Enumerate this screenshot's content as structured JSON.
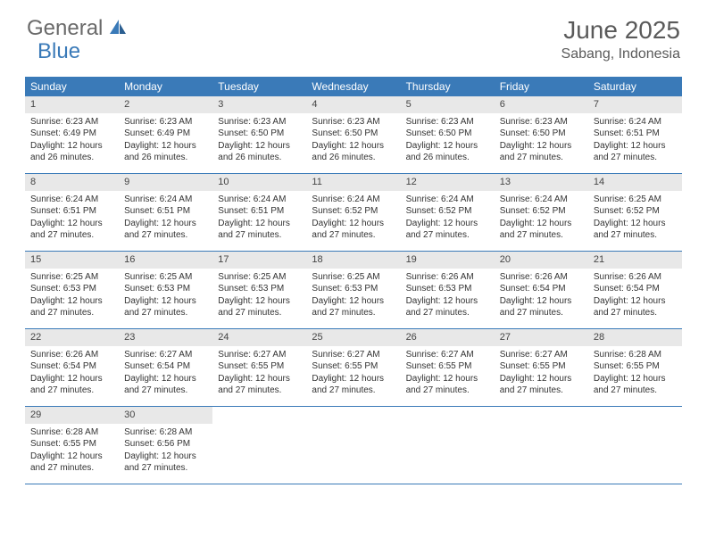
{
  "logo": {
    "main": "General",
    "sub": "Blue"
  },
  "title": "June 2025",
  "location": "Sabang, Indonesia",
  "colors": {
    "header_bg": "#3a7ab8",
    "header_text": "#ffffff",
    "daynum_bg": "#e8e8e8",
    "border": "#3a7ab8",
    "logo_gray": "#6a6a6a",
    "logo_blue": "#3a7ab8"
  },
  "day_headers": [
    "Sunday",
    "Monday",
    "Tuesday",
    "Wednesday",
    "Thursday",
    "Friday",
    "Saturday"
  ],
  "weeks": [
    [
      {
        "n": "1",
        "sr": "Sunrise: 6:23 AM",
        "ss": "Sunset: 6:49 PM",
        "d1": "Daylight: 12 hours",
        "d2": "and 26 minutes."
      },
      {
        "n": "2",
        "sr": "Sunrise: 6:23 AM",
        "ss": "Sunset: 6:49 PM",
        "d1": "Daylight: 12 hours",
        "d2": "and 26 minutes."
      },
      {
        "n": "3",
        "sr": "Sunrise: 6:23 AM",
        "ss": "Sunset: 6:50 PM",
        "d1": "Daylight: 12 hours",
        "d2": "and 26 minutes."
      },
      {
        "n": "4",
        "sr": "Sunrise: 6:23 AM",
        "ss": "Sunset: 6:50 PM",
        "d1": "Daylight: 12 hours",
        "d2": "and 26 minutes."
      },
      {
        "n": "5",
        "sr": "Sunrise: 6:23 AM",
        "ss": "Sunset: 6:50 PM",
        "d1": "Daylight: 12 hours",
        "d2": "and 26 minutes."
      },
      {
        "n": "6",
        "sr": "Sunrise: 6:23 AM",
        "ss": "Sunset: 6:50 PM",
        "d1": "Daylight: 12 hours",
        "d2": "and 27 minutes."
      },
      {
        "n": "7",
        "sr": "Sunrise: 6:24 AM",
        "ss": "Sunset: 6:51 PM",
        "d1": "Daylight: 12 hours",
        "d2": "and 27 minutes."
      }
    ],
    [
      {
        "n": "8",
        "sr": "Sunrise: 6:24 AM",
        "ss": "Sunset: 6:51 PM",
        "d1": "Daylight: 12 hours",
        "d2": "and 27 minutes."
      },
      {
        "n": "9",
        "sr": "Sunrise: 6:24 AM",
        "ss": "Sunset: 6:51 PM",
        "d1": "Daylight: 12 hours",
        "d2": "and 27 minutes."
      },
      {
        "n": "10",
        "sr": "Sunrise: 6:24 AM",
        "ss": "Sunset: 6:51 PM",
        "d1": "Daylight: 12 hours",
        "d2": "and 27 minutes."
      },
      {
        "n": "11",
        "sr": "Sunrise: 6:24 AM",
        "ss": "Sunset: 6:52 PM",
        "d1": "Daylight: 12 hours",
        "d2": "and 27 minutes."
      },
      {
        "n": "12",
        "sr": "Sunrise: 6:24 AM",
        "ss": "Sunset: 6:52 PM",
        "d1": "Daylight: 12 hours",
        "d2": "and 27 minutes."
      },
      {
        "n": "13",
        "sr": "Sunrise: 6:24 AM",
        "ss": "Sunset: 6:52 PM",
        "d1": "Daylight: 12 hours",
        "d2": "and 27 minutes."
      },
      {
        "n": "14",
        "sr": "Sunrise: 6:25 AM",
        "ss": "Sunset: 6:52 PM",
        "d1": "Daylight: 12 hours",
        "d2": "and 27 minutes."
      }
    ],
    [
      {
        "n": "15",
        "sr": "Sunrise: 6:25 AM",
        "ss": "Sunset: 6:53 PM",
        "d1": "Daylight: 12 hours",
        "d2": "and 27 minutes."
      },
      {
        "n": "16",
        "sr": "Sunrise: 6:25 AM",
        "ss": "Sunset: 6:53 PM",
        "d1": "Daylight: 12 hours",
        "d2": "and 27 minutes."
      },
      {
        "n": "17",
        "sr": "Sunrise: 6:25 AM",
        "ss": "Sunset: 6:53 PM",
        "d1": "Daylight: 12 hours",
        "d2": "and 27 minutes."
      },
      {
        "n": "18",
        "sr": "Sunrise: 6:25 AM",
        "ss": "Sunset: 6:53 PM",
        "d1": "Daylight: 12 hours",
        "d2": "and 27 minutes."
      },
      {
        "n": "19",
        "sr": "Sunrise: 6:26 AM",
        "ss": "Sunset: 6:53 PM",
        "d1": "Daylight: 12 hours",
        "d2": "and 27 minutes."
      },
      {
        "n": "20",
        "sr": "Sunrise: 6:26 AM",
        "ss": "Sunset: 6:54 PM",
        "d1": "Daylight: 12 hours",
        "d2": "and 27 minutes."
      },
      {
        "n": "21",
        "sr": "Sunrise: 6:26 AM",
        "ss": "Sunset: 6:54 PM",
        "d1": "Daylight: 12 hours",
        "d2": "and 27 minutes."
      }
    ],
    [
      {
        "n": "22",
        "sr": "Sunrise: 6:26 AM",
        "ss": "Sunset: 6:54 PM",
        "d1": "Daylight: 12 hours",
        "d2": "and 27 minutes."
      },
      {
        "n": "23",
        "sr": "Sunrise: 6:27 AM",
        "ss": "Sunset: 6:54 PM",
        "d1": "Daylight: 12 hours",
        "d2": "and 27 minutes."
      },
      {
        "n": "24",
        "sr": "Sunrise: 6:27 AM",
        "ss": "Sunset: 6:55 PM",
        "d1": "Daylight: 12 hours",
        "d2": "and 27 minutes."
      },
      {
        "n": "25",
        "sr": "Sunrise: 6:27 AM",
        "ss": "Sunset: 6:55 PM",
        "d1": "Daylight: 12 hours",
        "d2": "and 27 minutes."
      },
      {
        "n": "26",
        "sr": "Sunrise: 6:27 AM",
        "ss": "Sunset: 6:55 PM",
        "d1": "Daylight: 12 hours",
        "d2": "and 27 minutes."
      },
      {
        "n": "27",
        "sr": "Sunrise: 6:27 AM",
        "ss": "Sunset: 6:55 PM",
        "d1": "Daylight: 12 hours",
        "d2": "and 27 minutes."
      },
      {
        "n": "28",
        "sr": "Sunrise: 6:28 AM",
        "ss": "Sunset: 6:55 PM",
        "d1": "Daylight: 12 hours",
        "d2": "and 27 minutes."
      }
    ],
    [
      {
        "n": "29",
        "sr": "Sunrise: 6:28 AM",
        "ss": "Sunset: 6:55 PM",
        "d1": "Daylight: 12 hours",
        "d2": "and 27 minutes."
      },
      {
        "n": "30",
        "sr": "Sunrise: 6:28 AM",
        "ss": "Sunset: 6:56 PM",
        "d1": "Daylight: 12 hours",
        "d2": "and 27 minutes."
      },
      null,
      null,
      null,
      null,
      null
    ]
  ]
}
